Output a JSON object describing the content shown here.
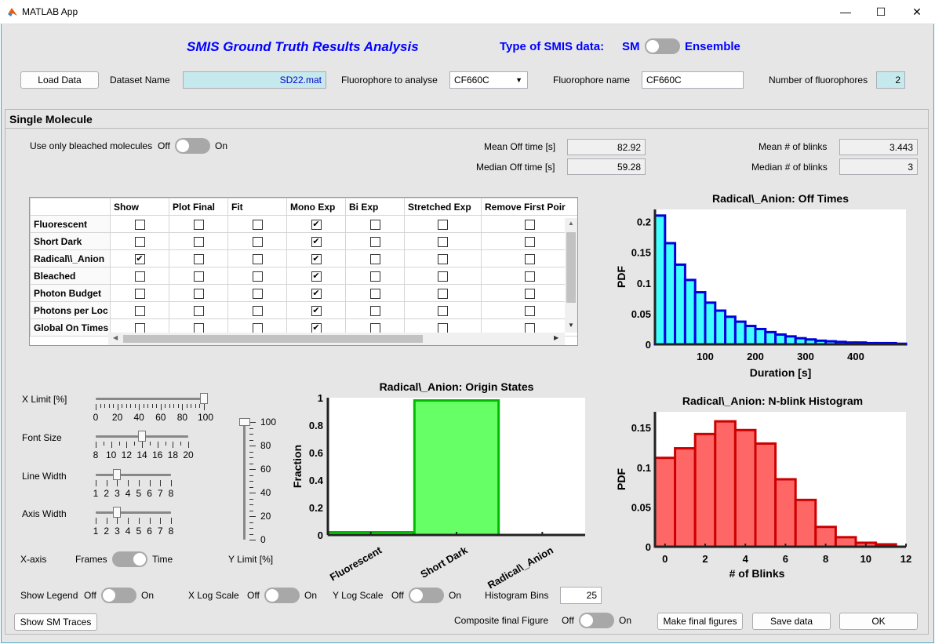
{
  "window": {
    "title": "MATLAB App",
    "minimize_icon": "minimize-icon",
    "maximize_icon": "maximize-icon",
    "close_icon": "close-icon"
  },
  "header": {
    "title": "SMIS Ground Truth Results Analysis",
    "data_type_label": "Type of SMIS data:",
    "sm_label": "SM",
    "ensemble_label": "Ensemble",
    "title_color": "#0000ff"
  },
  "toolbar": {
    "load_data": "Load Data",
    "dataset_name_label": "Dataset Name",
    "dataset_name_value": "SD22.mat",
    "fluorophore_to_analyse_label": "Fluorophore to analyse",
    "fluorophore_to_analyse_value": "CF660C",
    "fluorophore_name_label": "Fluorophore name",
    "fluorophore_name_value": "CF660C",
    "num_fluorophores_label": "Number of fluorophores",
    "num_fluorophores_value": "2"
  },
  "panel": {
    "title": "Single Molecule",
    "bleached_label": "Use only bleached molecules",
    "off": "Off",
    "on": "On",
    "mean_off_label": "Mean Off time [s]",
    "mean_off_value": "82.92",
    "median_off_label": "Median Off time [s]",
    "median_off_value": "59.28",
    "mean_blinks_label": "Mean # of blinks",
    "mean_blinks_value": "3.443",
    "median_blinks_label": "Median # of blinks",
    "median_blinks_value": "3"
  },
  "table": {
    "headers": [
      "Show",
      "Plot Final",
      "Fit",
      "Mono Exp",
      "Bi Exp",
      "Stretched Exp",
      "Remove First Poir"
    ],
    "rows": [
      {
        "name": "Fluorescent",
        "checks": [
          false,
          false,
          false,
          true,
          false,
          false,
          false
        ]
      },
      {
        "name": "Short Dark",
        "checks": [
          false,
          false,
          false,
          true,
          false,
          false,
          false
        ]
      },
      {
        "name": "Radical\\\\_Anion",
        "checks": [
          true,
          false,
          false,
          true,
          false,
          false,
          false
        ]
      },
      {
        "name": "Bleached",
        "checks": [
          false,
          false,
          false,
          true,
          false,
          false,
          false
        ]
      },
      {
        "name": "Photon Budget",
        "checks": [
          false,
          false,
          false,
          true,
          false,
          false,
          false
        ]
      },
      {
        "name": "Photons per Loc",
        "checks": [
          false,
          false,
          false,
          true,
          false,
          false,
          false
        ]
      },
      {
        "name": "Global On Times",
        "checks": [
          false,
          false,
          false,
          true,
          false,
          false,
          false
        ]
      }
    ]
  },
  "controls": {
    "xlimit_label": "X Limit [%]",
    "xlimit_ticks": [
      "0",
      "20",
      "40",
      "60",
      "80",
      "100"
    ],
    "xlimit_value": 100,
    "fontsize_label": "Font Size",
    "fontsize_ticks": [
      "8",
      "10",
      "12",
      "14",
      "16",
      "18",
      "20"
    ],
    "fontsize_value": 14,
    "linewidth_label": "Line Width",
    "linewidth_ticks": [
      "1",
      "2",
      "3",
      "4",
      "5",
      "6",
      "7",
      "8"
    ],
    "linewidth_value": 3,
    "axiswidth_label": "Axis Width",
    "axiswidth_ticks": [
      "1",
      "2",
      "3",
      "4",
      "5",
      "6",
      "7",
      "8"
    ],
    "axiswidth_value": 3,
    "ylimit_label": "Y Limit [%]",
    "ylimit_ticks": [
      "100",
      "80",
      "60",
      "40",
      "20",
      "0"
    ],
    "ylimit_value": 100,
    "xaxis_label": "X-axis",
    "frames": "Frames",
    "time": "Time",
    "show_legend": "Show Legend",
    "xlog": "X Log Scale",
    "ylog": "Y Log Scale",
    "off": "Off",
    "on": "On",
    "hist_bins_label": "Histogram Bins",
    "hist_bins_value": "25",
    "composite_label": "Composite final Figure",
    "show_sm_traces": "Show SM Traces",
    "make_final": "Make final figures",
    "save_data": "Save data",
    "ok": "OK"
  },
  "chart_data": [
    {
      "type": "bar",
      "title": "Radical\\_Anion:  Off  Times",
      "xlabel": "Duration [s]",
      "ylabel": "PDF",
      "xlim": [
        0,
        500
      ],
      "ylim": [
        0,
        0.22
      ],
      "xticks": [
        "100",
        "200",
        "300",
        "400"
      ],
      "yticks": [
        "0",
        "0.05",
        "0.1",
        "0.15",
        "0.2"
      ],
      "bin_width": 20,
      "bin_start": 0,
      "values": [
        0.21,
        0.165,
        0.13,
        0.105,
        0.085,
        0.068,
        0.055,
        0.045,
        0.037,
        0.03,
        0.025,
        0.02,
        0.016,
        0.013,
        0.01,
        0.008,
        0.006,
        0.005,
        0.004,
        0.003,
        0.003,
        0.002,
        0.002,
        0.002,
        0.001
      ],
      "color": "#40ffff",
      "edge": "#0000dd"
    },
    {
      "type": "bar",
      "title": "Radical\\_Anion:  Origin  States",
      "ylabel": "Fraction",
      "categories": [
        "Fluorescent",
        "Short Dark",
        "Radical\\_Anion"
      ],
      "values": [
        0.02,
        0.98,
        0.0
      ],
      "ylim": [
        0,
        1
      ],
      "yticks": [
        "0",
        "0.2",
        "0.4",
        "0.6",
        "0.8",
        "1"
      ],
      "color": "#66ff66",
      "edge": "#00bb00"
    },
    {
      "type": "bar",
      "title": "Radical\\_Anion:  N-blink  Histogram",
      "xlabel": "# of Blinks",
      "ylabel": "PDF",
      "xlim": [
        -0.5,
        12
      ],
      "ylim": [
        0,
        0.17
      ],
      "xticks": [
        "0",
        "2",
        "4",
        "6",
        "8",
        "10",
        "12"
      ],
      "yticks": [
        "0",
        "0.05",
        "0.1",
        "0.15"
      ],
      "x": [
        0,
        1,
        2,
        3,
        4,
        5,
        6,
        7,
        8,
        9,
        10,
        11
      ],
      "values": [
        0.112,
        0.124,
        0.142,
        0.158,
        0.147,
        0.13,
        0.085,
        0.059,
        0.025,
        0.012,
        0.005,
        0.003
      ],
      "color": "#ff6666",
      "edge": "#cc0000"
    }
  ]
}
